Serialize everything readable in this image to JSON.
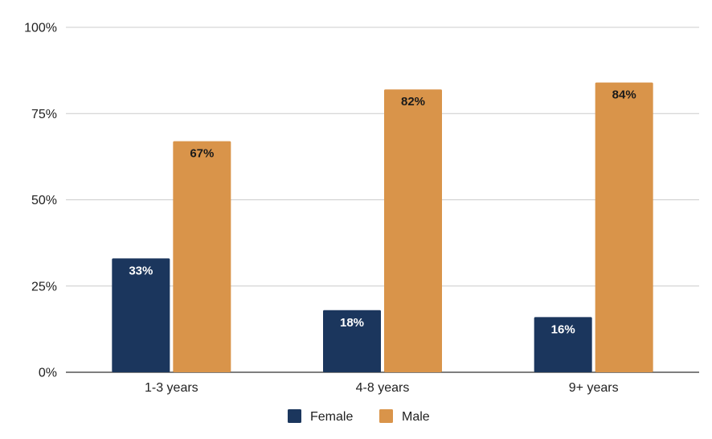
{
  "chart_data": {
    "type": "bar",
    "categories": [
      "1-3 years",
      "4-8 years",
      "9+ years"
    ],
    "series": [
      {
        "name": "Female",
        "values": [
          33,
          18,
          16
        ],
        "color": "#1b365d",
        "label_color": "#ffffff"
      },
      {
        "name": "Male",
        "values": [
          67,
          82,
          84
        ],
        "color": "#d9944a",
        "label_color": "#1a1a1a"
      }
    ],
    "data_labels": [
      [
        "33%",
        "18%",
        "16%"
      ],
      [
        "67%",
        "82%",
        "84%"
      ]
    ],
    "yticks": [
      "0%",
      "25%",
      "50%",
      "75%",
      "100%"
    ],
    "ylim": [
      0,
      100
    ],
    "grid": true,
    "legend_position": "bottom",
    "title": "",
    "xlabel": "",
    "ylabel": ""
  }
}
